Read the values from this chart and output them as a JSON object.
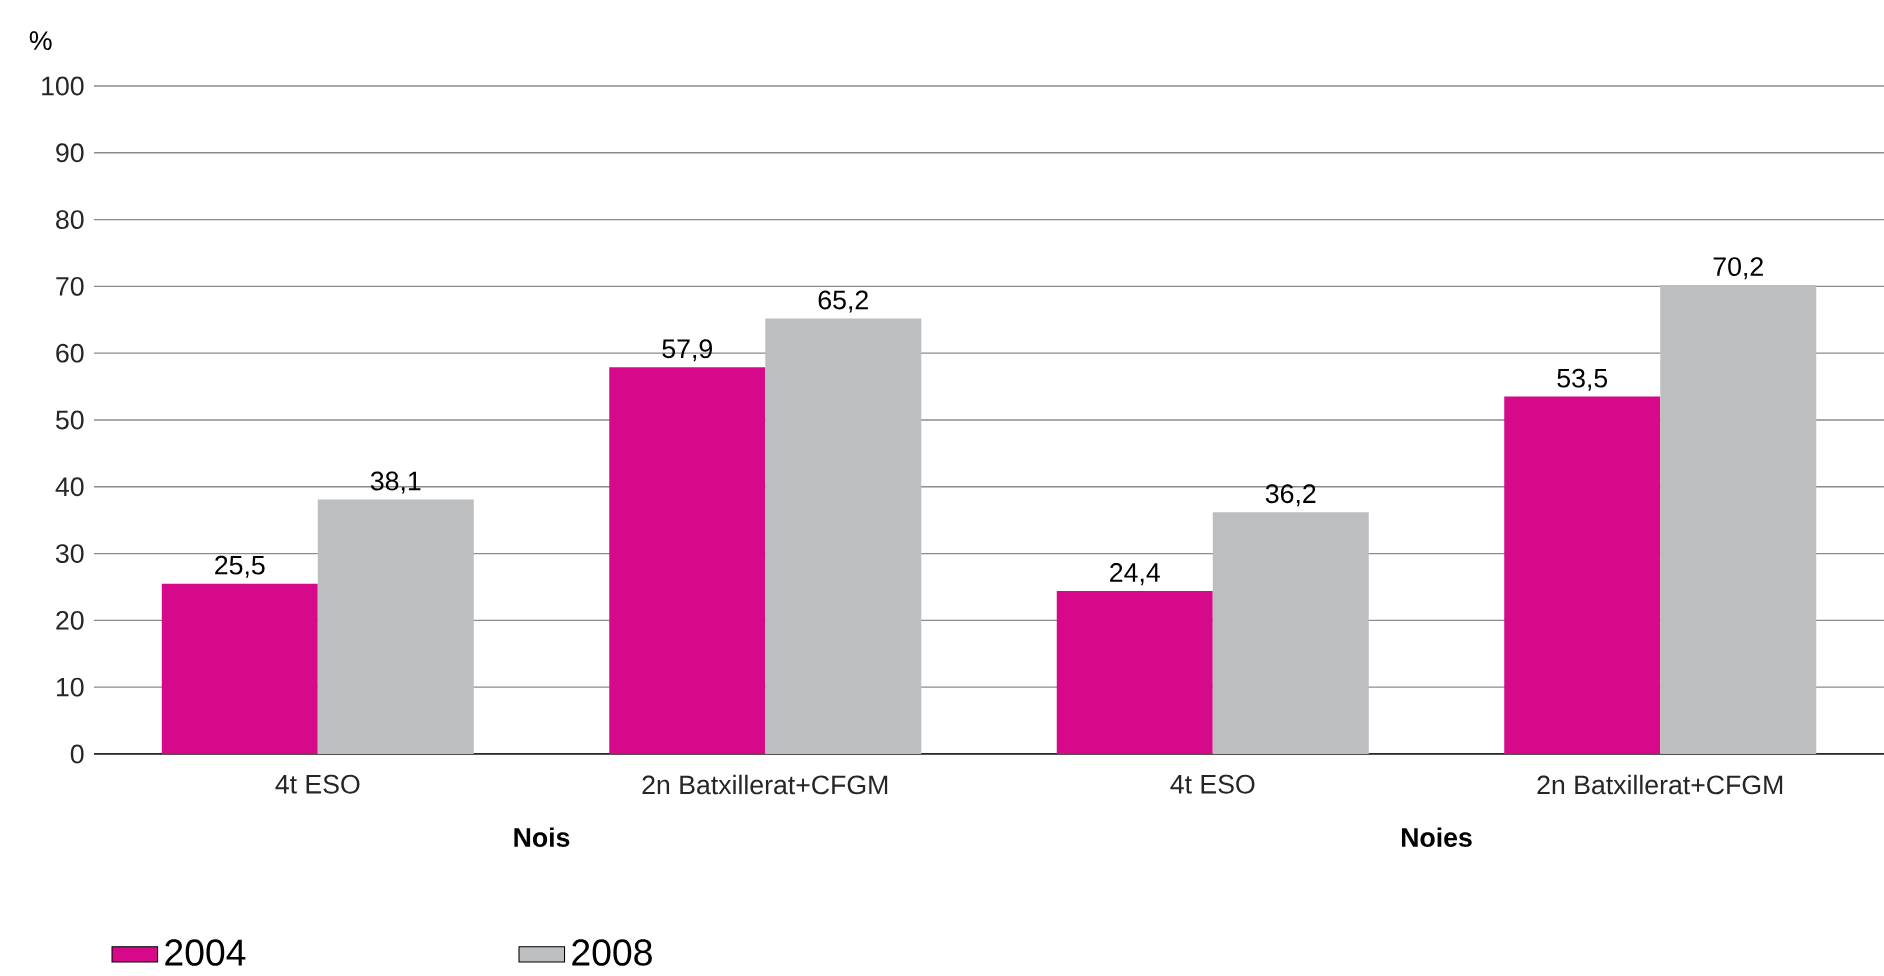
{
  "chart_data": {
    "type": "bar",
    "ylabel": "%",
    "categories": [
      "4t ESO",
      "2n Batxillerat+CFGM",
      "4t ESO",
      "2n Batxillerat+CFGM"
    ],
    "annotations": [
      "Nois",
      "Noies"
    ],
    "series": [
      {
        "name": "2004",
        "color": "#d6098b",
        "values": [
          25.5,
          57.9,
          24.4,
          53.5
        ],
        "value_labels": [
          "25,5",
          "57,9",
          "24,4",
          "53,5"
        ]
      },
      {
        "name": "2008",
        "color": "#bdbec0",
        "values": [
          38.1,
          65.2,
          36.2,
          70.2
        ],
        "value_labels": [
          "38,1",
          "65,2",
          "36,2",
          "70,2"
        ]
      }
    ],
    "ylim": [
      0,
      100
    ],
    "yticks": [
      0,
      10,
      20,
      30,
      40,
      50,
      60,
      70,
      80,
      90,
      100
    ],
    "grid": "y",
    "legend": "bottom left"
  }
}
